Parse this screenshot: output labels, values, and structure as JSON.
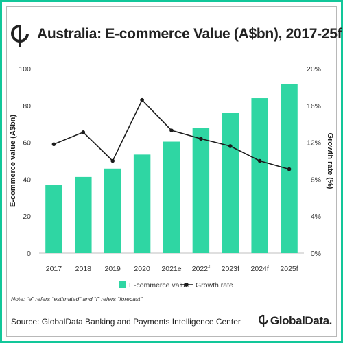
{
  "title": "Australia: E-commerce Value (A$bn), 2017-25f",
  "note": "Note: “e” refers “estimated” and “f” refers “forecast”",
  "source": "Source: GlobalData Banking and Payments Intelligence Center",
  "brand": "GlobalData.",
  "colors": {
    "accent": "#12c79a",
    "bar": "#2fd6a3",
    "line": "#1c1c1c",
    "axis_text": "#333333",
    "grid": "#d9d9d9"
  },
  "chart_data": {
    "type": "bar",
    "categories": [
      "2017",
      "2018",
      "2019",
      "2020",
      "2021e",
      "2022f",
      "2023f",
      "2024f",
      "2025f"
    ],
    "series": [
      {
        "name": "E-commerce value",
        "type": "bar",
        "axis": "left",
        "values": [
          36.8,
          41.3,
          45.8,
          53.4,
          60.4,
          68.0,
          75.9,
          84.0,
          91.5
        ]
      },
      {
        "name": "Growth rate",
        "type": "line",
        "axis": "right",
        "values": [
          11.8,
          13.1,
          10.0,
          16.6,
          13.3,
          12.4,
          11.6,
          10.0,
          9.1
        ]
      }
    ],
    "ylabel": "E-commerce value (A$bn)",
    "y2label": "Growth rate (%)",
    "ylim": [
      0,
      100
    ],
    "yticks": [
      "0",
      "20",
      "40",
      "60",
      "80",
      "100"
    ],
    "y2lim": [
      0,
      20
    ],
    "y2ticks": [
      "0%",
      "4%",
      "8%",
      "12%",
      "16%",
      "20%"
    ],
    "grid": false,
    "legend_position": "bottom-center"
  }
}
